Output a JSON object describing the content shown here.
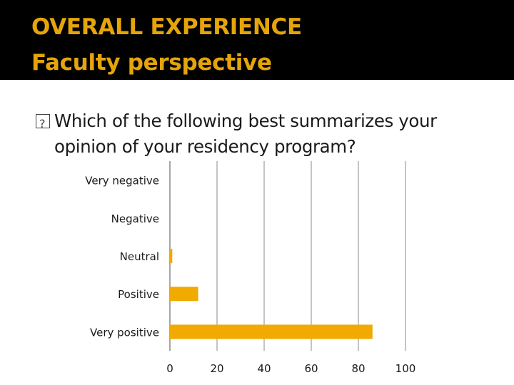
{
  "slide": {
    "title_line1": "OVERALL EXPERIENCE",
    "title_line2": "Faculty perspective",
    "question_line1": "Which of the following best summarizes your",
    "question_line2": "opinion of your residency program?"
  },
  "colors": {
    "title": "#e5a50a",
    "bar": "#f0aa00",
    "grid": "#b0b0b0"
  },
  "chart_data": {
    "type": "bar",
    "orientation": "horizontal",
    "title": "",
    "xlabel": "",
    "ylabel": "",
    "categories": [
      "Very negative",
      "Negative",
      "Neutral",
      "Positive",
      "Very positive"
    ],
    "values": [
      0,
      0,
      1,
      12,
      86
    ],
    "xlim": [
      0,
      100
    ],
    "ticks": [
      0,
      20,
      40,
      60,
      80,
      100
    ],
    "tick_labels": [
      "0",
      "20",
      "40",
      "60",
      "80",
      "100"
    ],
    "grid": true,
    "legend": "none"
  }
}
